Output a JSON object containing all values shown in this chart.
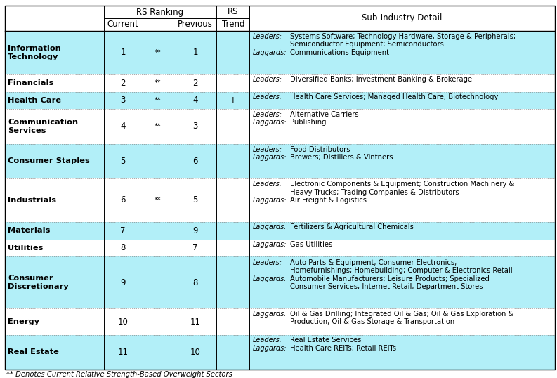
{
  "footnote": "** Denotes Current Relative Strength-Based Overweight Sectors",
  "bg_color": "#b2eff8",
  "rows": [
    {
      "sector": "Information\nTechnology",
      "current": "1",
      "star": "**",
      "previous": "1",
      "trend": "",
      "leaders": "Systems Software; Technology Hardware, Storage & Peripherals;\nSemiconductor Equipment; Semiconductors",
      "laggards": "Communications Equipment",
      "bg": "#b2eff8"
    },
    {
      "sector": "Financials",
      "current": "2",
      "star": "**",
      "previous": "2",
      "trend": "",
      "leaders": "Diversified Banks; Investment Banking & Brokerage",
      "laggards": "",
      "bg": "#ffffff"
    },
    {
      "sector": "Health Care",
      "current": "3",
      "star": "**",
      "previous": "4",
      "trend": "+",
      "leaders": "Health Care Services; Managed Health Care; Biotechnology",
      "laggards": "",
      "bg": "#b2eff8"
    },
    {
      "sector": "Communication\nServices",
      "current": "4",
      "star": "**",
      "previous": "3",
      "trend": "",
      "leaders": "Alternative Carriers",
      "laggards": "Publishing",
      "bg": "#ffffff"
    },
    {
      "sector": "Consumer Staples",
      "current": "5",
      "star": "",
      "previous": "6",
      "trend": "",
      "leaders": "Food Distributors",
      "laggards": "Brewers; Distillers & Vintners",
      "bg": "#b2eff8"
    },
    {
      "sector": "Industrials",
      "current": "6",
      "star": "**",
      "previous": "5",
      "trend": "",
      "leaders": "Electronic Components & Equipment; Construction Machinery &\nHeavy Trucks; Trading Companies & Distributors",
      "laggards": "Air Freight & Logistics",
      "bg": "#ffffff"
    },
    {
      "sector": "Materials",
      "current": "7",
      "star": "",
      "previous": "9",
      "trend": "",
      "leaders": "",
      "laggards": "Fertilizers & Agricultural Chemicals",
      "bg": "#b2eff8"
    },
    {
      "sector": "Utilities",
      "current": "8",
      "star": "",
      "previous": "7",
      "trend": "",
      "leaders": "",
      "laggards": "Gas Utilities",
      "bg": "#ffffff"
    },
    {
      "sector": "Consumer\nDiscretionary",
      "current": "9",
      "star": "",
      "previous": "8",
      "trend": "",
      "leaders": "Auto Parts & Equipment; Consumer Electronics;\nHomefurnishings; Homebuilding; Computer & Electronics Retail",
      "laggards": "Automobile Manufacturers; Leisure Products; Specialized\nConsumer Services; Internet Retail; Department Stores",
      "bg": "#b2eff8"
    },
    {
      "sector": "Energy",
      "current": "10",
      "star": "",
      "previous": "11",
      "trend": "",
      "leaders": "",
      "laggards": "Oil & Gas Drilling; Integrated Oil & Gas; Oil & Gas Exploration &\nProduction; Oil & Gas Storage & Transportation",
      "bg": "#ffffff"
    },
    {
      "sector": "Real Estate",
      "current": "11",
      "star": "",
      "previous": "10",
      "trend": "",
      "leaders": "Real Estate Services",
      "laggards": "Health Care REITs; Retail REITs",
      "bg": "#b2eff8"
    }
  ]
}
